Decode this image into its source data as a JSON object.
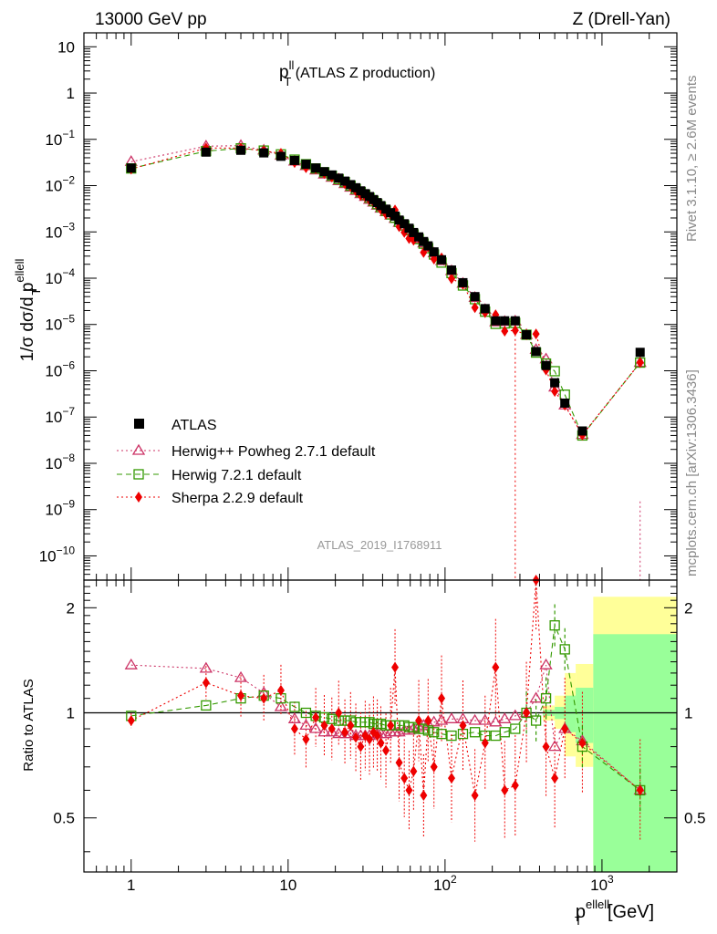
{
  "header": {
    "left": "13000 GeV pp",
    "right": "Z (Drell-Yan)"
  },
  "side": {
    "rivet": "Rivet 3.1.10, ≥ 2.6M events",
    "mcplots": "mcplots.cern.ch [arXiv:1306.3436]"
  },
  "chart_data": {
    "type": "scatter",
    "title_main": "p",
    "title_sup": "ll",
    "title_sub": "T",
    "title_rest": " (ATLAS Z production)",
    "analysis_id": "ATLAS_2019_I1768911",
    "ylabel_prefix": "1/σ dσ/d p",
    "ylabel_sup": "ellell",
    "ylabel_sub": "T",
    "xlabel_main": "p",
    "xlabel_sup": "ellell",
    "xlabel_sub": "T",
    "xlabel_unit": "[GeV]",
    "ratio_ylabel": "Ratio to ATLAS",
    "xlim": [
      0.5,
      3000
    ],
    "ylim_main": [
      3e-11,
      20
    ],
    "ylim_ratio": [
      0.35,
      2.4
    ],
    "xticks": [
      {
        "value": 1,
        "label": "1"
      },
      {
        "value": 10,
        "label": "10"
      },
      {
        "value": 100,
        "label": "10",
        "sup": "2"
      },
      {
        "value": 1000,
        "label": "10",
        "sup": "3"
      }
    ],
    "yticks_main": [
      {
        "value": 10,
        "label": "10"
      },
      {
        "value": 1,
        "label": "1"
      },
      {
        "value": 0.1,
        "label": "10",
        "sup": "−1"
      },
      {
        "value": 0.01,
        "label": "10",
        "sup": "−2"
      },
      {
        "value": 0.001,
        "label": "10",
        "sup": "−3"
      },
      {
        "value": 0.0001,
        "label": "10",
        "sup": "−4"
      },
      {
        "value": 1e-05,
        "label": "10",
        "sup": "−5"
      },
      {
        "value": 1e-06,
        "label": "10",
        "sup": "−6"
      },
      {
        "value": 1e-07,
        "label": "10",
        "sup": "−7"
      },
      {
        "value": 1e-08,
        "label": "10",
        "sup": "−8"
      },
      {
        "value": 1e-09,
        "label": "10",
        "sup": "−9"
      },
      {
        "value": 1e-10,
        "label": "10",
        "sup": "−10"
      }
    ],
    "yticks_ratio": [
      {
        "value": 0.5,
        "label": "0.5"
      },
      {
        "value": 1,
        "label": "1"
      },
      {
        "value": 2,
        "label": "2"
      }
    ],
    "data_x": [
      1,
      3,
      5,
      7,
      9,
      11,
      13,
      15,
      17,
      19,
      21,
      23,
      25,
      27,
      29,
      31,
      33,
      35,
      37,
      39,
      42,
      45,
      48,
      51,
      55,
      59,
      63,
      68,
      73,
      78,
      85,
      95,
      110,
      130,
      155,
      180,
      210,
      240,
      280,
      330,
      380,
      440,
      500,
      580,
      750,
      1750
    ],
    "atlas": [
      0.024,
      0.053,
      0.058,
      0.051,
      0.043,
      0.035,
      0.029,
      0.024,
      0.02,
      0.017,
      0.0145,
      0.0125,
      0.0105,
      0.009,
      0.0077,
      0.0067,
      0.0058,
      0.005,
      0.0043,
      0.0037,
      0.0031,
      0.0026,
      0.0022,
      0.0018,
      0.0015,
      0.0012,
      0.00097,
      0.00078,
      0.00062,
      0.0005,
      0.00037,
      0.00025,
      0.00015,
      8e-05,
      4e-05,
      2.2e-05,
      1.2e-05,
      1.2e-05,
      1.2e-05,
      6e-06,
      2.6e-06,
      1.3e-06,
      5.5e-07,
      2e-07,
      5e-08,
      2.5e-06
    ],
    "series": [
      {
        "name": "Herwig++ Powheg 2.7.1 default",
        "color": "#cc3366",
        "marker": "triangle",
        "dash": "2,3",
        "ratio": [
          1.37,
          1.34,
          1.26,
          1.14,
          1.04,
          0.96,
          0.92,
          0.9,
          0.88,
          0.88,
          0.87,
          0.87,
          0.87,
          0.86,
          0.86,
          0.86,
          0.86,
          0.87,
          0.87,
          0.87,
          0.87,
          0.88,
          0.88,
          0.88,
          0.89,
          0.89,
          0.9,
          0.91,
          0.92,
          0.93,
          0.94,
          0.95,
          0.96,
          0.96,
          0.95,
          0.95,
          0.94,
          0.96,
          0.98,
          1.0,
          1.1,
          1.37,
          0.8,
          0.9,
          0.83,
          0.6
        ]
      },
      {
        "name": "Herwig 7.2.1 default",
        "color": "#339900",
        "marker": "square",
        "dash": "6,4",
        "ratio": [
          0.98,
          1.05,
          1.1,
          1.12,
          1.1,
          1.04,
          1.0,
          0.98,
          0.97,
          0.96,
          0.95,
          0.95,
          0.95,
          0.94,
          0.94,
          0.94,
          0.94,
          0.93,
          0.93,
          0.93,
          0.92,
          0.92,
          0.92,
          0.92,
          0.92,
          0.91,
          0.91,
          0.9,
          0.9,
          0.89,
          0.88,
          0.87,
          0.86,
          0.87,
          0.88,
          0.86,
          0.86,
          0.88,
          0.9,
          1.0,
          0.95,
          1.1,
          1.78,
          1.52,
          0.8,
          0.6
        ]
      },
      {
        "name": "Sherpa 2.2.9 default",
        "color": "#ee0000",
        "marker": "diamond",
        "dash": "2,3",
        "ratio": [
          0.95,
          1.22,
          1.12,
          1.1,
          1.16,
          0.9,
          0.84,
          0.97,
          0.92,
          0.9,
          1.0,
          0.88,
          0.92,
          0.85,
          0.8,
          0.86,
          0.84,
          0.88,
          0.86,
          0.82,
          0.78,
          0.92,
          1.35,
          0.72,
          0.65,
          0.6,
          0.68,
          0.95,
          0.58,
          0.95,
          0.7,
          1.1,
          0.65,
          0.92,
          0.58,
          0.82,
          1.35,
          0.6,
          0.62,
          1.0,
          2.4,
          0.8,
          0.65,
          0.9,
          0.82,
          0.6
        ]
      }
    ],
    "legend_label": "ATLAS",
    "uncertainty_bands": [
      {
        "x0": 420,
        "x1": 500,
        "yellow_lo": 0.95,
        "yellow_hi": 1.05,
        "green_lo": 0.98,
        "green_hi": 1.02
      },
      {
        "x0": 500,
        "x1": 580,
        "yellow_lo": 0.9,
        "yellow_hi": 1.12,
        "green_lo": 0.96,
        "green_hi": 1.04
      },
      {
        "x0": 580,
        "x1": 680,
        "yellow_lo": 0.75,
        "yellow_hi": 1.3,
        "green_lo": 0.88,
        "green_hi": 1.12
      },
      {
        "x0": 680,
        "x1": 880,
        "yellow_lo": 0.7,
        "yellow_hi": 1.38,
        "green_lo": 0.82,
        "green_hi": 1.18
      },
      {
        "x0": 880,
        "x1": 3000,
        "yellow_lo": 0.35,
        "yellow_hi": 2.15,
        "green_lo": 0.35,
        "green_hi": 1.68
      }
    ]
  }
}
